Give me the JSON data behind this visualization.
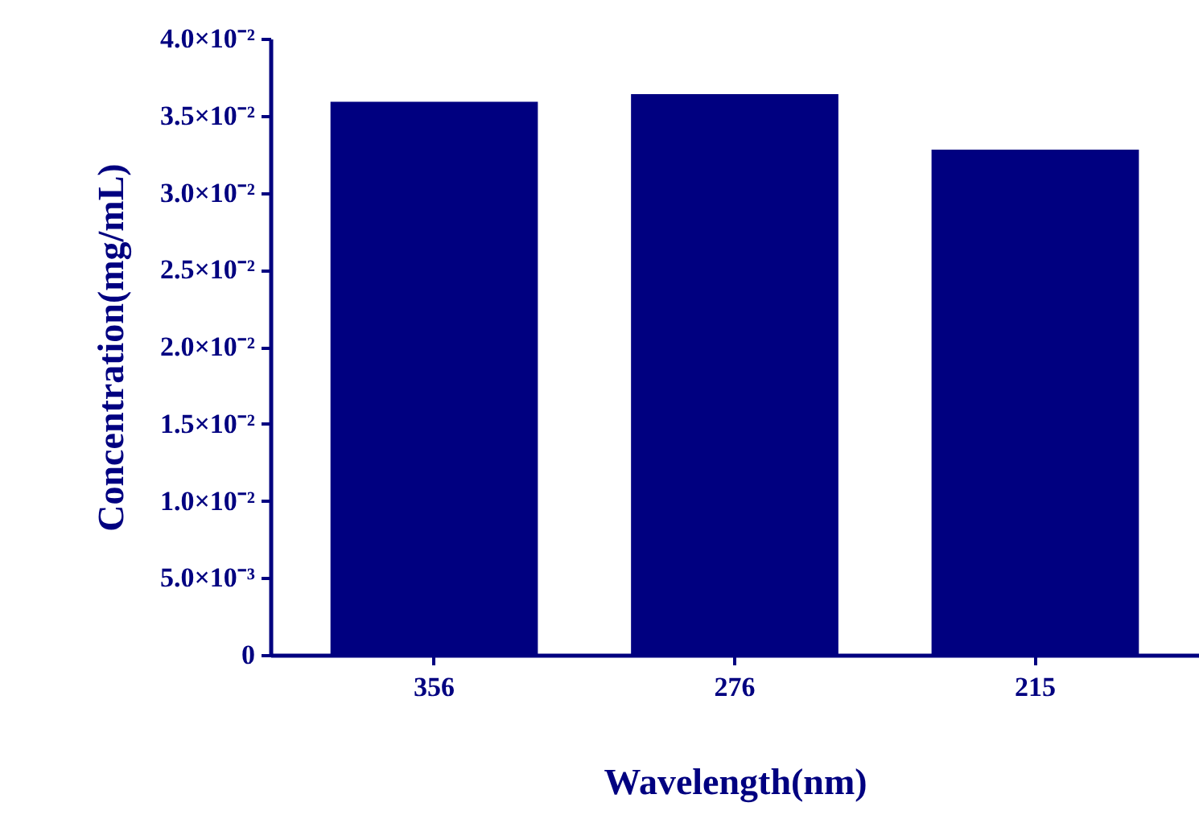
{
  "chart_data": {
    "type": "bar",
    "xlabel": "Wavelength(nm)",
    "ylabel": "Concentration(mg/mL)",
    "categories": [
      "356",
      "276",
      "215"
    ],
    "values": [
      0.0359,
      0.0364,
      0.0328
    ],
    "color": "#000080",
    "ylim": [
      0,
      0.04
    ],
    "yticks": [
      {
        "value": 0,
        "label": "0"
      },
      {
        "value": 0.005,
        "label": "5.0×10⁻³"
      },
      {
        "value": 0.01,
        "label": "1.0×10⁻²"
      },
      {
        "value": 0.015,
        "label": "1.5×10⁻²"
      },
      {
        "value": 0.02,
        "label": "2.0×10⁻²"
      },
      {
        "value": 0.025,
        "label": "2.5×10⁻²"
      },
      {
        "value": 0.03,
        "label": "3.0×10⁻²"
      },
      {
        "value": 0.035,
        "label": "3.5×10⁻²"
      },
      {
        "value": 0.04,
        "label": "4.0×10⁻²"
      }
    ],
    "grid": false
  }
}
